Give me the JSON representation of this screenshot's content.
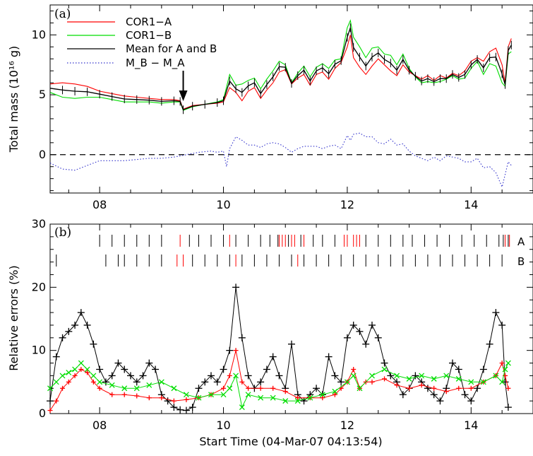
{
  "xlabel": "Start Time (04-Mar-07 04:13:54)",
  "chart_data": [
    {
      "panel": "(a)",
      "type": "line",
      "ylabel": "Total mass (10¹⁶ g)",
      "xlim": [
        7.2,
        15.0
      ],
      "ylim": [
        -3.2,
        12.5
      ],
      "xticks": [
        8,
        10,
        12,
        14
      ],
      "xtick_labels": [
        "08",
        "10",
        "12",
        "14"
      ],
      "yticks": [
        0,
        5,
        10
      ],
      "ytick_labels": [
        "0",
        "5",
        "10"
      ],
      "reference_line": 0,
      "arrow_x": 9.35,
      "legend_position": "top-left",
      "series": [
        {
          "name": "COR1−A",
          "color": "#ff0000",
          "x": [
            7.2,
            7.4,
            7.6,
            7.8,
            8.0,
            8.2,
            8.4,
            8.6,
            8.8,
            9.0,
            9.2,
            9.3,
            9.35,
            9.5,
            9.7,
            9.9,
            10.0,
            10.1,
            10.2,
            10.3,
            10.4,
            10.5,
            10.6,
            10.7,
            10.8,
            10.9,
            11.0,
            11.1,
            11.2,
            11.3,
            11.4,
            11.5,
            11.6,
            11.7,
            11.8,
            11.9,
            12.0,
            12.05,
            12.1,
            12.2,
            12.3,
            12.4,
            12.5,
            12.6,
            12.7,
            12.8,
            12.9,
            13.0,
            13.1,
            13.2,
            13.3,
            13.4,
            13.5,
            13.6,
            13.7,
            13.8,
            13.9,
            14.0,
            14.1,
            14.2,
            14.3,
            14.4,
            14.5,
            14.55,
            14.6,
            14.65
          ],
          "values": [
            5.9,
            6.0,
            5.9,
            5.7,
            5.3,
            5.1,
            4.9,
            4.8,
            4.7,
            4.6,
            4.6,
            4.5,
            3.8,
            4.1,
            4.2,
            4.3,
            4.4,
            5.6,
            5.2,
            4.5,
            5.3,
            5.6,
            4.7,
            5.4,
            6.0,
            6.9,
            7.1,
            5.9,
            6.4,
            6.7,
            5.8,
            6.7,
            6.9,
            6.3,
            7.2,
            7.7,
            9.0,
            10.0,
            8.1,
            7.3,
            6.7,
            7.4,
            8.0,
            7.5,
            7.0,
            6.6,
            7.5,
            6.9,
            6.6,
            6.3,
            6.6,
            6.2,
            6.6,
            6.4,
            6.8,
            6.6,
            7.0,
            7.8,
            8.1,
            7.8,
            8.6,
            8.9,
            7.5,
            6.0,
            9.0,
            9.7
          ]
        },
        {
          "name": "COR1−B",
          "color": "#00dd00",
          "x": [
            7.2,
            7.4,
            7.6,
            7.8,
            8.0,
            8.2,
            8.4,
            8.6,
            8.8,
            9.0,
            9.2,
            9.3,
            9.35,
            9.5,
            9.7,
            9.9,
            10.0,
            10.1,
            10.2,
            10.3,
            10.4,
            10.5,
            10.6,
            10.7,
            10.8,
            10.9,
            11.0,
            11.1,
            11.2,
            11.3,
            11.4,
            11.5,
            11.6,
            11.7,
            11.8,
            11.9,
            12.0,
            12.05,
            12.1,
            12.2,
            12.3,
            12.4,
            12.5,
            12.6,
            12.7,
            12.8,
            12.9,
            13.0,
            13.1,
            13.2,
            13.3,
            13.4,
            13.5,
            13.6,
            13.7,
            13.8,
            13.9,
            14.0,
            14.1,
            14.2,
            14.3,
            14.4,
            14.5,
            14.55,
            14.6,
            14.65
          ],
          "values": [
            5.2,
            4.8,
            4.7,
            4.8,
            4.8,
            4.6,
            4.4,
            4.4,
            4.4,
            4.3,
            4.4,
            4.4,
            3.7,
            4.0,
            4.2,
            4.4,
            4.6,
            6.7,
            5.8,
            5.9,
            6.2,
            6.4,
            5.5,
            6.3,
            7.0,
            7.8,
            7.5,
            6.0,
            6.8,
            7.4,
            6.5,
            7.3,
            7.6,
            7.2,
            7.9,
            8.0,
            10.6,
            11.2,
            9.8,
            9.0,
            8.1,
            8.9,
            9.0,
            8.4,
            8.3,
            7.5,
            8.4,
            7.2,
            6.5,
            6.0,
            6.1,
            6.0,
            6.1,
            6.3,
            6.6,
            6.3,
            6.4,
            7.2,
            7.8,
            6.7,
            7.6,
            7.4,
            6.0,
            5.7,
            8.4,
            8.6
          ]
        },
        {
          "name": "Mean for A and B",
          "color": "#000000",
          "x": [
            7.2,
            7.4,
            7.6,
            7.8,
            8.0,
            8.2,
            8.4,
            8.6,
            8.8,
            9.0,
            9.2,
            9.3,
            9.35,
            9.5,
            9.7,
            9.9,
            10.0,
            10.1,
            10.2,
            10.3,
            10.4,
            10.5,
            10.6,
            10.7,
            10.8,
            10.9,
            11.0,
            11.1,
            11.2,
            11.3,
            11.4,
            11.5,
            11.6,
            11.7,
            11.8,
            11.9,
            12.0,
            12.05,
            12.1,
            12.2,
            12.3,
            12.4,
            12.5,
            12.6,
            12.7,
            12.8,
            12.9,
            13.0,
            13.1,
            13.2,
            13.3,
            13.4,
            13.5,
            13.6,
            13.7,
            13.8,
            13.9,
            14.0,
            14.1,
            14.2,
            14.3,
            14.4,
            14.5,
            14.55,
            14.6,
            14.65
          ],
          "values": [
            5.55,
            5.4,
            5.3,
            5.25,
            5.05,
            4.85,
            4.65,
            4.6,
            4.55,
            4.45,
            4.5,
            4.45,
            3.75,
            4.05,
            4.2,
            4.35,
            4.5,
            6.15,
            5.5,
            5.2,
            5.75,
            6.0,
            5.1,
            5.85,
            6.5,
            7.35,
            7.3,
            5.95,
            6.6,
            7.05,
            6.15,
            7.0,
            7.25,
            6.75,
            7.55,
            7.85,
            9.8,
            10.6,
            8.95,
            8.15,
            7.4,
            8.15,
            8.5,
            7.95,
            7.65,
            7.05,
            7.95,
            7.05,
            6.55,
            6.15,
            6.35,
            6.1,
            6.35,
            6.35,
            6.7,
            6.45,
            6.7,
            7.5,
            7.95,
            7.25,
            8.1,
            8.15,
            6.75,
            5.85,
            8.7,
            9.15
          ]
        },
        {
          "name": "M_B − M_A",
          "color": "#3333cc",
          "x": [
            7.2,
            7.4,
            7.6,
            7.8,
            8.0,
            8.2,
            8.4,
            8.6,
            8.8,
            9.0,
            9.2,
            9.4,
            9.6,
            9.8,
            9.9,
            10.0,
            10.05,
            10.1,
            10.2,
            10.3,
            10.4,
            10.5,
            10.6,
            10.7,
            10.8,
            10.9,
            11.0,
            11.1,
            11.2,
            11.3,
            11.4,
            11.5,
            11.6,
            11.7,
            11.8,
            11.9,
            12.0,
            12.05,
            12.1,
            12.2,
            12.3,
            12.4,
            12.5,
            12.6,
            12.7,
            12.8,
            12.9,
            13.0,
            13.1,
            13.2,
            13.3,
            13.4,
            13.5,
            13.6,
            13.7,
            13.8,
            13.9,
            14.0,
            14.1,
            14.2,
            14.3,
            14.4,
            14.5,
            14.6,
            14.65
          ],
          "values": [
            -0.7,
            -1.2,
            -1.3,
            -0.9,
            -0.5,
            -0.5,
            -0.5,
            -0.4,
            -0.3,
            -0.3,
            -0.2,
            0.0,
            0.2,
            0.3,
            0.2,
            0.3,
            -1.0,
            0.5,
            1.5,
            1.2,
            0.8,
            0.8,
            0.6,
            0.9,
            1.0,
            0.9,
            0.6,
            0.2,
            0.5,
            0.7,
            0.7,
            0.7,
            0.5,
            0.7,
            0.8,
            0.5,
            1.6,
            1.2,
            1.7,
            1.8,
            1.5,
            1.5,
            1.0,
            0.9,
            1.3,
            0.8,
            0.9,
            0.3,
            -0.1,
            -0.3,
            -0.5,
            -0.2,
            -0.5,
            -0.1,
            -0.2,
            -0.3,
            -0.6,
            -0.6,
            -0.3,
            -1.1,
            -1.0,
            -1.5,
            -2.7,
            -0.6,
            -0.9
          ]
        }
      ]
    },
    {
      "panel": "(b)",
      "type": "line",
      "ylabel": "Relative errors (%)",
      "xlim": [
        7.2,
        15.0
      ],
      "ylim": [
        0,
        30
      ],
      "xticks": [
        8,
        10,
        12,
        14
      ],
      "xtick_labels": [
        "08",
        "10",
        "12",
        "14"
      ],
      "yticks": [
        0,
        10,
        20,
        30
      ],
      "ytick_labels": [
        "0",
        "10",
        "20",
        "30"
      ],
      "series": [
        {
          "name": "Mean for A and B",
          "color": "#000000",
          "marker": "plus",
          "x": [
            7.2,
            7.3,
            7.4,
            7.5,
            7.6,
            7.7,
            7.8,
            7.9,
            8.0,
            8.1,
            8.2,
            8.3,
            8.4,
            8.5,
            8.6,
            8.7,
            8.8,
            8.9,
            9.0,
            9.1,
            9.2,
            9.3,
            9.4,
            9.5,
            9.6,
            9.7,
            9.8,
            9.9,
            10.0,
            10.1,
            10.2,
            10.3,
            10.4,
            10.5,
            10.6,
            10.7,
            10.8,
            10.9,
            11.0,
            11.1,
            11.2,
            11.3,
            11.4,
            11.5,
            11.6,
            11.7,
            11.8,
            11.9,
            12.0,
            12.1,
            12.2,
            12.3,
            12.4,
            12.5,
            12.6,
            12.7,
            12.8,
            12.9,
            13.0,
            13.1,
            13.2,
            13.3,
            13.4,
            13.5,
            13.6,
            13.7,
            13.8,
            13.9,
            14.0,
            14.1,
            14.2,
            14.3,
            14.4,
            14.5,
            14.55,
            14.6
          ],
          "values": [
            2,
            9,
            12,
            13,
            14,
            16,
            14,
            11,
            7,
            5,
            6,
            8,
            7,
            6,
            5,
            6,
            8,
            7,
            3,
            2,
            1,
            0.6,
            0.5,
            1,
            4,
            5,
            6,
            5,
            7,
            10,
            20,
            12,
            6,
            4,
            5,
            7,
            9,
            6,
            4,
            11,
            3,
            2,
            3,
            4,
            3,
            9,
            6,
            5,
            12,
            14,
            13,
            11,
            14,
            12,
            8,
            6,
            5,
            3,
            4,
            6,
            5,
            4,
            3,
            2,
            4,
            8,
            7,
            3,
            2,
            4,
            7,
            11,
            16,
            14,
            5,
            1
          ]
        },
        {
          "name": "COR1−A",
          "color": "#ff0000",
          "marker": "plus",
          "x": [
            7.2,
            7.3,
            7.4,
            7.5,
            7.6,
            7.7,
            7.8,
            7.9,
            8.0,
            8.2,
            8.4,
            8.6,
            8.8,
            9.0,
            9.2,
            9.4,
            9.6,
            9.8,
            10.0,
            10.1,
            10.2,
            10.3,
            10.4,
            10.6,
            10.8,
            11.0,
            11.2,
            11.4,
            11.6,
            11.8,
            11.9,
            12.0,
            12.1,
            12.2,
            12.3,
            12.4,
            12.6,
            12.8,
            13.0,
            13.2,
            13.4,
            13.6,
            13.8,
            14.0,
            14.2,
            14.4,
            14.5,
            14.55,
            14.6
          ],
          "values": [
            0.5,
            2,
            4,
            5,
            6,
            7,
            6.5,
            5,
            4,
            3,
            3,
            2.8,
            2.5,
            2.5,
            2,
            2.2,
            2.5,
            3,
            4,
            6,
            10,
            5,
            4,
            4,
            4,
            3.5,
            2.5,
            2.5,
            2.5,
            3,
            4,
            5,
            7,
            4,
            5,
            5,
            5.5,
            4.5,
            4,
            4.5,
            4,
            3.5,
            4,
            4,
            5,
            6,
            8,
            6,
            4
          ]
        },
        {
          "name": "COR1−B",
          "color": "#00dd00",
          "marker": "cross",
          "x": [
            7.2,
            7.3,
            7.4,
            7.5,
            7.6,
            7.7,
            7.8,
            7.9,
            8.0,
            8.2,
            8.4,
            8.6,
            8.8,
            9.0,
            9.2,
            9.4,
            9.6,
            9.8,
            10.0,
            10.1,
            10.2,
            10.3,
            10.4,
            10.6,
            10.8,
            11.0,
            11.2,
            11.4,
            11.6,
            11.8,
            12.0,
            12.1,
            12.2,
            12.4,
            12.6,
            12.8,
            13.0,
            13.2,
            13.4,
            13.6,
            13.8,
            14.0,
            14.2,
            14.4,
            14.5,
            14.55,
            14.6
          ],
          "values": [
            4,
            5,
            6,
            6.5,
            7,
            8,
            7,
            6,
            5,
            4.5,
            4,
            4,
            4.5,
            5,
            4,
            3,
            2.5,
            3,
            3,
            4,
            6,
            1,
            3,
            2.5,
            2.5,
            2,
            2,
            2.5,
            3,
            3.5,
            5,
            6,
            4,
            6,
            7,
            6,
            5.5,
            6,
            5.5,
            6,
            5.5,
            5,
            5,
            6,
            5,
            7,
            8
          ]
        }
      ],
      "observation_ticks": [
        {
          "label": "A",
          "x_black": [
            8.0,
            8.2,
            8.4,
            8.6,
            8.8,
            9.0,
            9.45,
            9.6,
            9.8,
            10.0,
            10.2,
            10.4,
            10.6,
            10.75,
            10.88,
            11.05,
            11.25,
            11.45,
            11.6,
            11.8,
            12.3,
            12.5,
            12.7,
            12.9,
            13.05,
            13.25,
            13.45,
            13.65,
            13.85,
            14.05,
            14.25,
            14.45,
            14.52,
            14.6
          ],
          "x_red": [
            9.3,
            10.1,
            10.9,
            10.95,
            11.0,
            11.1,
            11.15,
            11.3,
            11.95,
            12.0,
            12.1,
            12.15,
            12.2,
            14.55,
            14.62
          ]
        },
        {
          "label": "B",
          "x_black": [
            7.3,
            8.1,
            8.3,
            8.4,
            8.6,
            8.8,
            9.0,
            9.5,
            9.7,
            9.9,
            10.1,
            10.3,
            10.5,
            10.7,
            10.9,
            11.1,
            11.3,
            11.5,
            11.7,
            11.9,
            12.1,
            12.3,
            12.5,
            12.7,
            12.9,
            13.1,
            13.3,
            13.5,
            13.7,
            13.9,
            14.1,
            14.3,
            14.5
          ],
          "x_red": [
            9.25,
            9.35,
            10.2,
            11.2
          ]
        }
      ]
    }
  ]
}
